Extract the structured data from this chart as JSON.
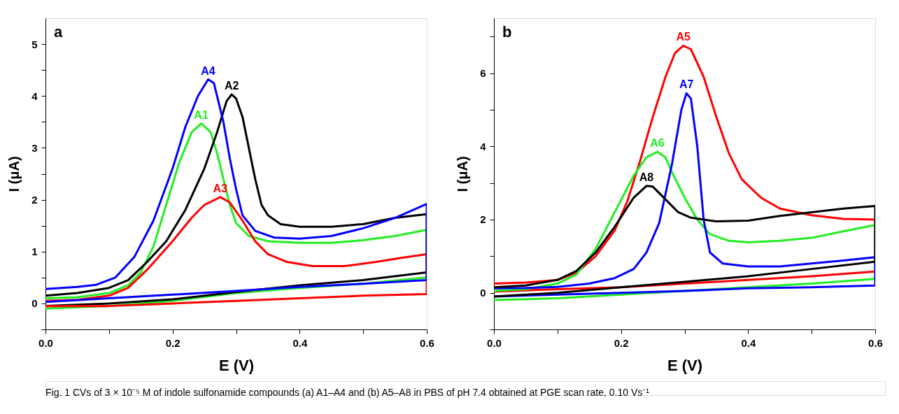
{
  "chart_data": [
    {
      "type": "line",
      "title": "a",
      "xlabel": "E (V)",
      "ylabel": "I (μA)",
      "xlim": [
        0,
        0.6
      ],
      "ylim": [
        -0.5,
        5.5
      ],
      "xticks": [
        {
          "value": 0,
          "label": "0.0"
        },
        {
          "value": 0.1,
          "label": null
        },
        0.2,
        {
          "value": 0.3,
          "label": null
        },
        0.4,
        {
          "value": 0.5,
          "label": null
        },
        0.6
      ],
      "yticks": [
        {
          "value": -0.5,
          "label": null
        },
        0,
        {
          "value": 0.5,
          "label": null
        },
        1,
        {
          "value": 1.5,
          "label": null
        },
        2,
        {
          "value": 2.5,
          "label": null
        },
        3,
        {
          "value": 3.5,
          "label": null
        },
        4,
        {
          "value": 4.5,
          "label": null
        },
        5
      ],
      "grid": false,
      "legend": false,
      "marker": "none",
      "line_style": "solid",
      "annotations": [
        "Fig. 1  CVs of 3 × 10⁻⁵ M of indole sulfonamide compounds (a) A1–A4 and (b) A5–A8 in PBS of pH 7.4 obtained at PGE scan rate, 0.10 Vs⁻¹"
      ],
      "series": [
        {
          "name": "A1",
          "color": "#22ee22",
          "x": [
            0,
            0.05,
            0.1,
            0.13,
            0.15,
            0.17,
            0.19,
            0.21,
            0.23,
            0.245,
            0.26,
            0.27,
            0.28,
            0.29,
            0.3,
            0.32,
            0.35,
            0.4,
            0.45,
            0.5,
            0.55,
            0.6,
            0.6,
            0.5,
            0.4,
            0.3,
            0.2,
            0.1,
            0
          ],
          "values": [
            0.1,
            0.12,
            0.2,
            0.35,
            0.6,
            1.1,
            1.9,
            2.7,
            3.3,
            3.47,
            3.3,
            2.9,
            2.4,
            1.9,
            1.55,
            1.3,
            1.2,
            1.17,
            1.17,
            1.22,
            1.3,
            1.42,
            0.5,
            0.38,
            0.3,
            0.2,
            0.05,
            -0.05,
            -0.1
          ]
        },
        {
          "name": "A2",
          "color": "#000000",
          "x": [
            0,
            0.05,
            0.1,
            0.13,
            0.16,
            0.19,
            0.22,
            0.25,
            0.27,
            0.285,
            0.293,
            0.3,
            0.31,
            0.32,
            0.33,
            0.34,
            0.35,
            0.37,
            0.4,
            0.45,
            0.5,
            0.55,
            0.6,
            0.6,
            0.5,
            0.4,
            0.3,
            0.2,
            0.1,
            0
          ],
          "values": [
            0.15,
            0.2,
            0.3,
            0.45,
            0.8,
            1.2,
            1.8,
            2.6,
            3.3,
            3.9,
            4.03,
            3.95,
            3.6,
            3.0,
            2.4,
            1.9,
            1.7,
            1.53,
            1.48,
            1.48,
            1.53,
            1.65,
            1.72,
            0.6,
            0.45,
            0.35,
            0.22,
            0.08,
            0.0,
            -0.05
          ]
        },
        {
          "name": "A3",
          "color": "#ff0000",
          "x": [
            0,
            0.05,
            0.1,
            0.13,
            0.16,
            0.2,
            0.23,
            0.25,
            0.275,
            0.29,
            0.31,
            0.33,
            0.35,
            0.38,
            0.42,
            0.47,
            0.52,
            0.56,
            0.6,
            0.6,
            0.5,
            0.4,
            0.3,
            0.2,
            0.1,
            0
          ],
          "values": [
            0.05,
            0.07,
            0.15,
            0.3,
            0.65,
            1.2,
            1.65,
            1.9,
            2.05,
            1.95,
            1.6,
            1.2,
            0.95,
            0.8,
            0.72,
            0.72,
            0.8,
            0.88,
            0.95,
            0.18,
            0.15,
            0.1,
            0.05,
            0.0,
            -0.05,
            -0.05
          ]
        },
        {
          "name": "A4",
          "color": "#0000ff",
          "x": [
            0,
            0.05,
            0.08,
            0.11,
            0.14,
            0.17,
            0.2,
            0.22,
            0.24,
            0.256,
            0.265,
            0.28,
            0.29,
            0.3,
            0.31,
            0.33,
            0.36,
            0.4,
            0.45,
            0.5,
            0.55,
            0.6,
            0.6,
            0.5,
            0.4,
            0.3,
            0.2,
            0.1,
            0
          ],
          "values": [
            0.28,
            0.32,
            0.36,
            0.5,
            0.9,
            1.6,
            2.6,
            3.4,
            4.0,
            4.32,
            4.25,
            3.5,
            2.8,
            2.2,
            1.7,
            1.4,
            1.27,
            1.25,
            1.3,
            1.45,
            1.65,
            1.92,
            0.45,
            0.38,
            0.32,
            0.24,
            0.17,
            0.1,
            0.03
          ]
        }
      ]
    },
    {
      "type": "line",
      "title": "b",
      "xlabel": "E (V)",
      "ylabel": "I (μA)",
      "xlim": [
        0,
        0.6
      ],
      "ylim": [
        -1,
        7.5
      ],
      "xticks": [
        {
          "value": 0,
          "label": "0.0"
        },
        {
          "value": 0.1,
          "label": null
        },
        0.2,
        {
          "value": 0.3,
          "label": null
        },
        0.4,
        {
          "value": 0.5,
          "label": null
        },
        0.6
      ],
      "yticks": [
        {
          "value": -1,
          "label": null
        },
        0,
        {
          "value": 1,
          "label": null
        },
        2,
        {
          "value": 3,
          "label": null
        },
        4,
        {
          "value": 5,
          "label": null
        },
        6,
        {
          "value": 7,
          "label": null
        }
      ],
      "grid": false,
      "legend": false,
      "marker": "none",
      "line_style": "solid",
      "series": [
        {
          "name": "A5",
          "color": "#ff0000",
          "x": [
            0,
            0.05,
            0.1,
            0.13,
            0.16,
            0.19,
            0.21,
            0.23,
            0.25,
            0.27,
            0.285,
            0.298,
            0.31,
            0.33,
            0.35,
            0.37,
            0.39,
            0.42,
            0.45,
            0.5,
            0.55,
            0.6,
            0.6,
            0.5,
            0.4,
            0.3,
            0.2,
            0.1,
            0
          ],
          "values": [
            0.25,
            0.28,
            0.35,
            0.55,
            1.0,
            1.7,
            2.5,
            3.6,
            4.8,
            5.9,
            6.55,
            6.75,
            6.65,
            5.9,
            4.8,
            3.8,
            3.1,
            2.6,
            2.3,
            2.12,
            2.02,
            2.0,
            0.58,
            0.45,
            0.35,
            0.25,
            0.15,
            0.1,
            0.03
          ]
        },
        {
          "name": "A6",
          "color": "#22ee22",
          "x": [
            0,
            0.05,
            0.1,
            0.13,
            0.16,
            0.19,
            0.22,
            0.24,
            0.257,
            0.27,
            0.28,
            0.3,
            0.32,
            0.34,
            0.37,
            0.4,
            0.45,
            0.5,
            0.55,
            0.6,
            0.6,
            0.5,
            0.4,
            0.3,
            0.2,
            0.1,
            0
          ],
          "values": [
            0.05,
            0.1,
            0.25,
            0.5,
            1.2,
            2.2,
            3.2,
            3.7,
            3.85,
            3.7,
            3.3,
            2.6,
            2.0,
            1.6,
            1.42,
            1.38,
            1.42,
            1.5,
            1.68,
            1.85,
            0.38,
            0.25,
            0.15,
            0.05,
            -0.05,
            -0.15,
            -0.2
          ]
        },
        {
          "name": "A7",
          "color": "#0000ff",
          "x": [
            0,
            0.05,
            0.1,
            0.15,
            0.19,
            0.22,
            0.24,
            0.26,
            0.28,
            0.295,
            0.303,
            0.31,
            0.32,
            0.33,
            0.34,
            0.36,
            0.4,
            0.45,
            0.5,
            0.55,
            0.6,
            0.6,
            0.5,
            0.4,
            0.3,
            0.2,
            0.1,
            0
          ],
          "values": [
            0.12,
            0.13,
            0.16,
            0.25,
            0.4,
            0.65,
            1.1,
            1.9,
            3.5,
            5.0,
            5.45,
            5.3,
            4.0,
            2.0,
            1.1,
            0.8,
            0.72,
            0.72,
            0.8,
            0.88,
            0.97,
            0.2,
            0.15,
            0.12,
            0.05,
            0.0,
            -0.05,
            -0.1
          ]
        },
        {
          "name": "A8",
          "color": "#000000",
          "x": [
            0,
            0.05,
            0.1,
            0.13,
            0.16,
            0.19,
            0.22,
            0.24,
            0.25,
            0.27,
            0.29,
            0.31,
            0.35,
            0.4,
            0.45,
            0.5,
            0.55,
            0.6,
            0.6,
            0.5,
            0.4,
            0.3,
            0.2,
            0.1,
            0
          ],
          "values": [
            0.15,
            0.2,
            0.35,
            0.6,
            1.1,
            1.8,
            2.6,
            2.92,
            2.9,
            2.55,
            2.2,
            2.05,
            1.95,
            1.97,
            2.1,
            2.2,
            2.3,
            2.37,
            0.85,
            0.65,
            0.45,
            0.3,
            0.15,
            0.0,
            -0.1
          ]
        }
      ]
    }
  ]
}
